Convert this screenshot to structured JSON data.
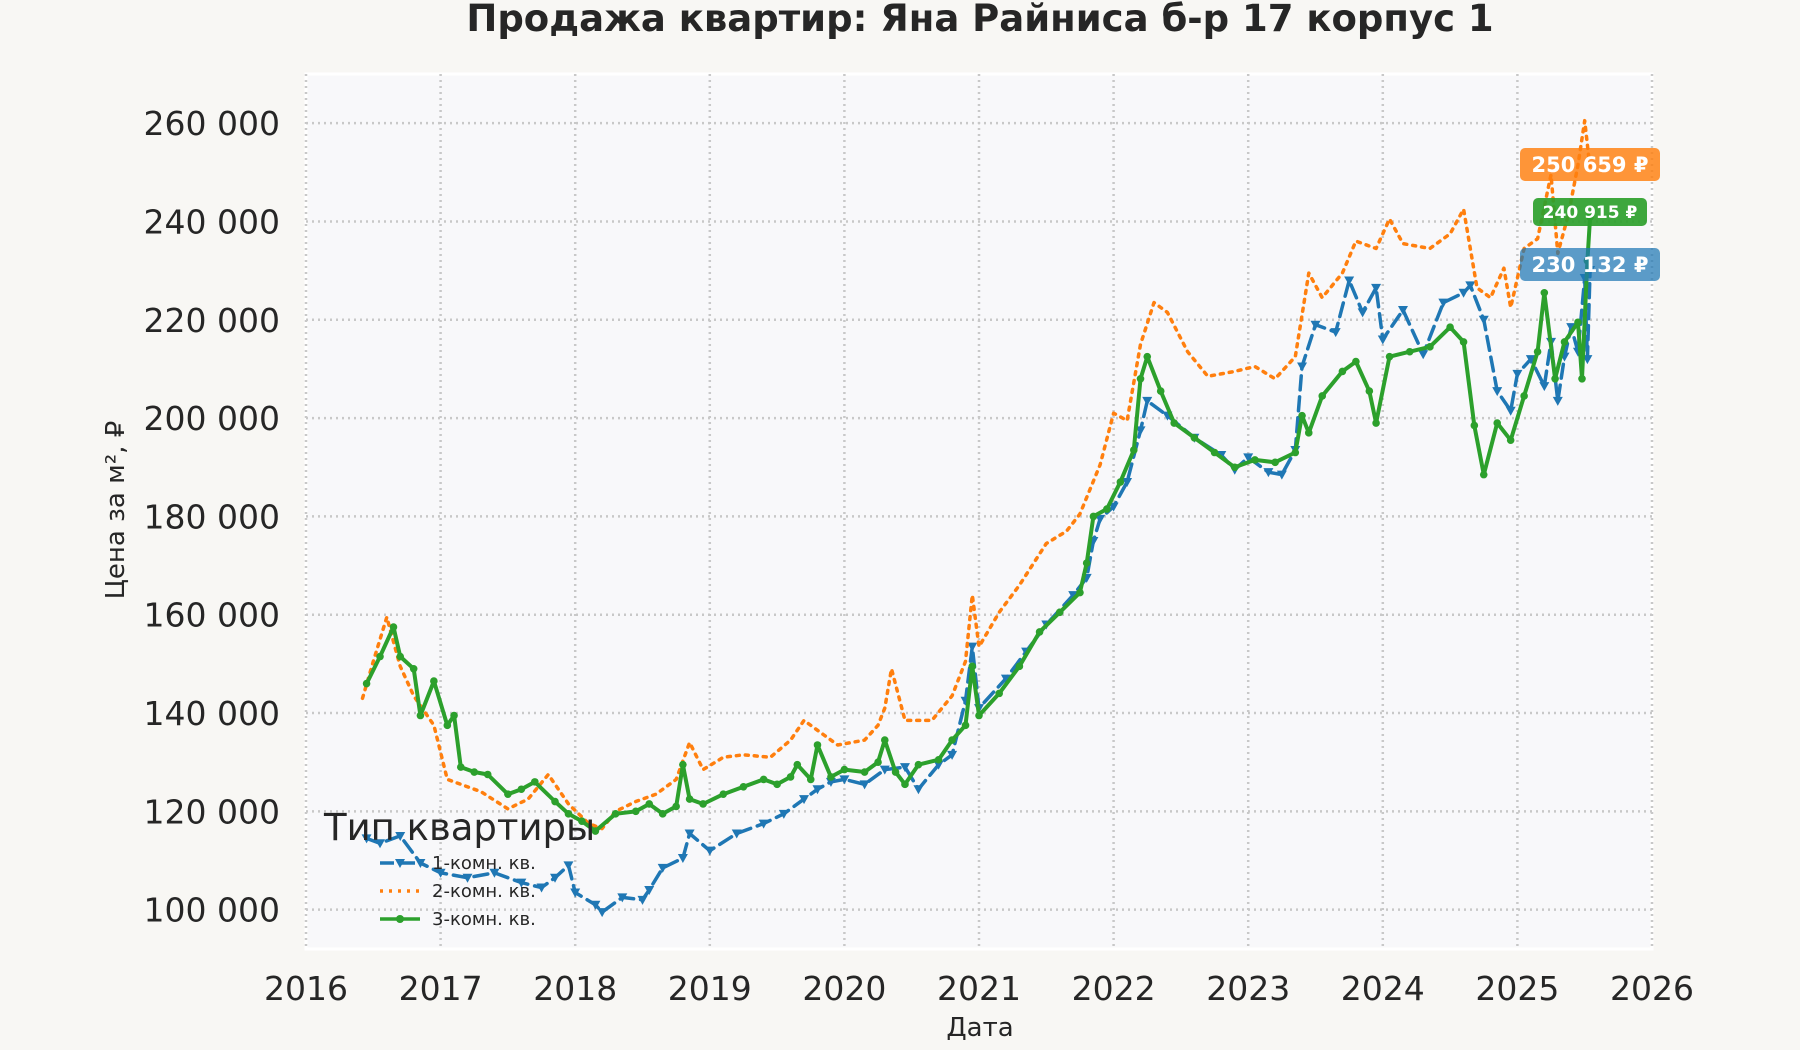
{
  "chart_data": {
    "type": "line",
    "title": "Продажа квартир: Яна Райниса б-р 17 корпус 1",
    "xlabel": "Дата",
    "ylabel": "Цена за м², ₽",
    "xlim": [
      2016,
      2026
    ],
    "ylim": [
      92000,
      270000
    ],
    "x_ticks": [
      "2016",
      "2017",
      "2018",
      "2019",
      "2020",
      "2021",
      "2022",
      "2023",
      "2024",
      "2025",
      "2026"
    ],
    "y_ticks": [
      "100 000",
      "120 000",
      "140 000",
      "160 000",
      "180 000",
      "200 000",
      "220 000",
      "240 000",
      "260 000"
    ],
    "grid": true,
    "legend": {
      "title": "Тип квартиры",
      "placement": "lower-left"
    },
    "series": [
      {
        "name": "1-комн. кв.",
        "color": "#1f77b4",
        "style": "dashed",
        "marker": "triangle-down",
        "last_value_label": "230 132 ₽",
        "points": [
          [
            2016.45,
            114500
          ],
          [
            2016.55,
            113500
          ],
          [
            2016.7,
            115000
          ],
          [
            2016.85,
            109500
          ],
          [
            2017.0,
            107500
          ],
          [
            2017.2,
            106500
          ],
          [
            2017.4,
            107500
          ],
          [
            2017.6,
            105500
          ],
          [
            2017.75,
            104500
          ],
          [
            2017.85,
            106500
          ],
          [
            2017.95,
            109000
          ],
          [
            2018.0,
            103500
          ],
          [
            2018.15,
            101000
          ],
          [
            2018.2,
            99500
          ],
          [
            2018.35,
            102500
          ],
          [
            2018.5,
            102000
          ],
          [
            2018.55,
            104000
          ],
          [
            2018.65,
            108500
          ],
          [
            2018.8,
            110500
          ],
          [
            2018.85,
            115500
          ],
          [
            2019.0,
            112000
          ],
          [
            2019.2,
            115500
          ],
          [
            2019.4,
            117500
          ],
          [
            2019.55,
            119500
          ],
          [
            2019.7,
            122500
          ],
          [
            2019.8,
            124500
          ],
          [
            2019.9,
            126000
          ],
          [
            2020.0,
            126500
          ],
          [
            2020.15,
            125500
          ],
          [
            2020.3,
            128500
          ],
          [
            2020.45,
            129000
          ],
          [
            2020.55,
            124500
          ],
          [
            2020.7,
            129500
          ],
          [
            2020.8,
            131500
          ],
          [
            2020.9,
            142500
          ],
          [
            2020.95,
            153500
          ],
          [
            2021.0,
            141000
          ],
          [
            2021.2,
            147000
          ],
          [
            2021.35,
            152500
          ],
          [
            2021.5,
            158000
          ],
          [
            2021.7,
            164000
          ],
          [
            2021.8,
            167500
          ],
          [
            2021.85,
            175000
          ],
          [
            2021.9,
            179500
          ],
          [
            2022.0,
            182000
          ],
          [
            2022.1,
            187000
          ],
          [
            2022.2,
            197500
          ],
          [
            2022.25,
            203500
          ],
          [
            2022.4,
            200500
          ],
          [
            2022.6,
            196000
          ],
          [
            2022.8,
            192500
          ],
          [
            2022.9,
            189500
          ],
          [
            2023.0,
            192000
          ],
          [
            2023.15,
            189000
          ],
          [
            2023.25,
            188500
          ],
          [
            2023.35,
            193500
          ],
          [
            2023.4,
            210500
          ],
          [
            2023.5,
            219000
          ],
          [
            2023.65,
            217500
          ],
          [
            2023.75,
            228000
          ],
          [
            2023.85,
            221500
          ],
          [
            2023.95,
            226500
          ],
          [
            2024.0,
            216000
          ],
          [
            2024.15,
            222000
          ],
          [
            2024.3,
            213000
          ],
          [
            2024.45,
            223500
          ],
          [
            2024.6,
            225500
          ],
          [
            2024.65,
            227000
          ],
          [
            2024.75,
            220000
          ],
          [
            2024.85,
            205500
          ],
          [
            2024.95,
            201500
          ],
          [
            2025.0,
            209000
          ],
          [
            2025.1,
            212000
          ],
          [
            2025.2,
            206500
          ],
          [
            2025.25,
            215500
          ],
          [
            2025.3,
            203500
          ],
          [
            2025.35,
            212500
          ],
          [
            2025.4,
            218500
          ],
          [
            2025.45,
            213500
          ],
          [
            2025.5,
            228500
          ],
          [
            2025.52,
            212000
          ],
          [
            2025.54,
            230132
          ]
        ]
      },
      {
        "name": "2-комн. кв.",
        "color": "#ff7f0e",
        "style": "dotted",
        "marker": "none",
        "last_value_label": "250 659 ₽",
        "points": [
          [
            2016.42,
            143000
          ],
          [
            2016.5,
            150500
          ],
          [
            2016.6,
            159500
          ],
          [
            2016.7,
            149500
          ],
          [
            2016.8,
            143500
          ],
          [
            2016.95,
            137500
          ],
          [
            2017.05,
            126500
          ],
          [
            2017.3,
            124000
          ],
          [
            2017.5,
            120500
          ],
          [
            2017.65,
            122500
          ],
          [
            2017.8,
            127500
          ],
          [
            2017.95,
            121500
          ],
          [
            2018.1,
            117500
          ],
          [
            2018.2,
            116500
          ],
          [
            2018.3,
            120000
          ],
          [
            2018.45,
            122000
          ],
          [
            2018.6,
            123500
          ],
          [
            2018.75,
            126500
          ],
          [
            2018.85,
            134000
          ],
          [
            2018.95,
            128500
          ],
          [
            2019.1,
            131000
          ],
          [
            2019.25,
            131500
          ],
          [
            2019.45,
            131000
          ],
          [
            2019.6,
            134500
          ],
          [
            2019.7,
            138500
          ],
          [
            2019.8,
            136500
          ],
          [
            2019.95,
            133500
          ],
          [
            2020.15,
            134500
          ],
          [
            2020.25,
            137500
          ],
          [
            2020.3,
            141000
          ],
          [
            2020.35,
            149000
          ],
          [
            2020.45,
            138500
          ],
          [
            2020.65,
            138500
          ],
          [
            2020.8,
            143500
          ],
          [
            2020.9,
            150500
          ],
          [
            2020.95,
            164000
          ],
          [
            2021.0,
            153500
          ],
          [
            2021.15,
            160500
          ],
          [
            2021.3,
            166000
          ],
          [
            2021.5,
            174500
          ],
          [
            2021.65,
            177000
          ],
          [
            2021.75,
            180500
          ],
          [
            2021.9,
            190500
          ],
          [
            2022.0,
            201000
          ],
          [
            2022.1,
            199500
          ],
          [
            2022.2,
            215000
          ],
          [
            2022.3,
            223500
          ],
          [
            2022.4,
            221500
          ],
          [
            2022.55,
            213500
          ],
          [
            2022.7,
            208500
          ],
          [
            2022.9,
            209500
          ],
          [
            2023.05,
            210500
          ],
          [
            2023.2,
            208000
          ],
          [
            2023.35,
            212500
          ],
          [
            2023.45,
            229500
          ],
          [
            2023.55,
            224500
          ],
          [
            2023.7,
            229500
          ],
          [
            2023.8,
            236000
          ],
          [
            2023.95,
            234500
          ],
          [
            2024.05,
            240500
          ],
          [
            2024.15,
            235500
          ],
          [
            2024.35,
            234500
          ],
          [
            2024.5,
            237500
          ],
          [
            2024.6,
            242500
          ],
          [
            2024.7,
            226500
          ],
          [
            2024.8,
            224500
          ],
          [
            2024.9,
            230500
          ],
          [
            2024.95,
            222500
          ],
          [
            2025.05,
            234500
          ],
          [
            2025.15,
            236500
          ],
          [
            2025.25,
            249500
          ],
          [
            2025.3,
            233500
          ],
          [
            2025.38,
            241500
          ],
          [
            2025.45,
            251500
          ],
          [
            2025.5,
            260500
          ],
          [
            2025.54,
            250659
          ]
        ]
      },
      {
        "name": "3-комн. кв.",
        "color": "#2ca02c",
        "style": "solid",
        "marker": "circle",
        "last_value_label": "240 915 ₽",
        "points": [
          [
            2016.45,
            146000
          ],
          [
            2016.55,
            151500
          ],
          [
            2016.65,
            157500
          ],
          [
            2016.7,
            151500
          ],
          [
            2016.8,
            149000
          ],
          [
            2016.85,
            139500
          ],
          [
            2016.95,
            146500
          ],
          [
            2017.05,
            137500
          ],
          [
            2017.1,
            139500
          ],
          [
            2017.15,
            129000
          ],
          [
            2017.25,
            128000
          ],
          [
            2017.35,
            127500
          ],
          [
            2017.5,
            123500
          ],
          [
            2017.6,
            124500
          ],
          [
            2017.7,
            126000
          ],
          [
            2017.85,
            122000
          ],
          [
            2017.95,
            119500
          ],
          [
            2018.05,
            118000
          ],
          [
            2018.15,
            116000
          ],
          [
            2018.3,
            119500
          ],
          [
            2018.45,
            120000
          ],
          [
            2018.55,
            121500
          ],
          [
            2018.65,
            119500
          ],
          [
            2018.75,
            121000
          ],
          [
            2018.8,
            129500
          ],
          [
            2018.85,
            122500
          ],
          [
            2018.95,
            121500
          ],
          [
            2019.1,
            123500
          ],
          [
            2019.25,
            125000
          ],
          [
            2019.4,
            126500
          ],
          [
            2019.5,
            125500
          ],
          [
            2019.6,
            127000
          ],
          [
            2019.65,
            129500
          ],
          [
            2019.75,
            126500
          ],
          [
            2019.8,
            133500
          ],
          [
            2019.9,
            127000
          ],
          [
            2020.0,
            128500
          ],
          [
            2020.15,
            128000
          ],
          [
            2020.25,
            130000
          ],
          [
            2020.3,
            134500
          ],
          [
            2020.38,
            128000
          ],
          [
            2020.45,
            125500
          ],
          [
            2020.55,
            129500
          ],
          [
            2020.7,
            130500
          ],
          [
            2020.8,
            134500
          ],
          [
            2020.9,
            137500
          ],
          [
            2020.95,
            149500
          ],
          [
            2021.0,
            139500
          ],
          [
            2021.15,
            144000
          ],
          [
            2021.3,
            149500
          ],
          [
            2021.45,
            156500
          ],
          [
            2021.6,
            160500
          ],
          [
            2021.75,
            164500
          ],
          [
            2021.8,
            170500
          ],
          [
            2021.85,
            180000
          ],
          [
            2021.95,
            181500
          ],
          [
            2022.05,
            187000
          ],
          [
            2022.15,
            193500
          ],
          [
            2022.2,
            208000
          ],
          [
            2022.25,
            212500
          ],
          [
            2022.35,
            205500
          ],
          [
            2022.45,
            199000
          ],
          [
            2022.6,
            196000
          ],
          [
            2022.75,
            193000
          ],
          [
            2022.9,
            190000
          ],
          [
            2023.05,
            191500
          ],
          [
            2023.2,
            191000
          ],
          [
            2023.35,
            193000
          ],
          [
            2023.4,
            200500
          ],
          [
            2023.45,
            197000
          ],
          [
            2023.55,
            204500
          ],
          [
            2023.7,
            209500
          ],
          [
            2023.8,
            211500
          ],
          [
            2023.9,
            205500
          ],
          [
            2023.95,
            199000
          ],
          [
            2024.05,
            212500
          ],
          [
            2024.2,
            213500
          ],
          [
            2024.35,
            214500
          ],
          [
            2024.5,
            218500
          ],
          [
            2024.6,
            215500
          ],
          [
            2024.68,
            198500
          ],
          [
            2024.75,
            188500
          ],
          [
            2024.85,
            199000
          ],
          [
            2024.95,
            195500
          ],
          [
            2025.05,
            204500
          ],
          [
            2025.15,
            213500
          ],
          [
            2025.2,
            225500
          ],
          [
            2025.28,
            208000
          ],
          [
            2025.35,
            215500
          ],
          [
            2025.45,
            219500
          ],
          [
            2025.48,
            208000
          ],
          [
            2025.52,
            232000
          ],
          [
            2025.54,
            240915
          ]
        ]
      }
    ]
  }
}
